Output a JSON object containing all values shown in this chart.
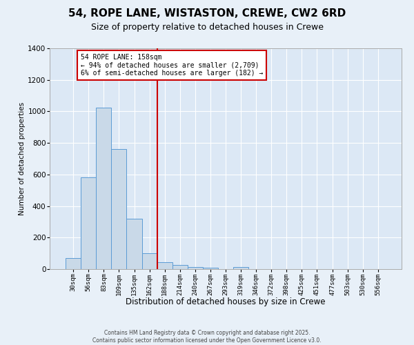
{
  "title": "54, ROPE LANE, WISTASTON, CREWE, CW2 6RD",
  "subtitle": "Size of property relative to detached houses in Crewe",
  "xlabel": "Distribution of detached houses by size in Crewe",
  "ylabel": "Number of detached properties",
  "bar_categories": [
    "30sqm",
    "56sqm",
    "83sqm",
    "109sqm",
    "135sqm",
    "162sqm",
    "188sqm",
    "214sqm",
    "240sqm",
    "267sqm",
    "293sqm",
    "319sqm",
    "346sqm",
    "372sqm",
    "398sqm",
    "425sqm",
    "451sqm",
    "477sqm",
    "503sqm",
    "530sqm",
    "556sqm"
  ],
  "bar_values": [
    70,
    580,
    1025,
    760,
    320,
    100,
    43,
    25,
    12,
    8,
    0,
    12,
    0,
    0,
    0,
    0,
    0,
    0,
    0,
    0,
    0
  ],
  "bar_color": "#c9d9e8",
  "bar_edge_color": "#5b9bd5",
  "ylim": [
    0,
    1400
  ],
  "yticks": [
    0,
    200,
    400,
    600,
    800,
    1000,
    1200,
    1400
  ],
  "vline_color": "#cc0000",
  "annotation_title": "54 ROPE LANE: 158sqm",
  "annotation_line1": "← 94% of detached houses are smaller (2,709)",
  "annotation_line2": "6% of semi-detached houses are larger (182) →",
  "annotation_box_color": "#cc0000",
  "background_color": "#e8f0f8",
  "plot_bg_color": "#dce8f5",
  "grid_color": "#ffffff",
  "footer_line1": "Contains HM Land Registry data © Crown copyright and database right 2025.",
  "footer_line2": "Contains public sector information licensed under the Open Government Licence v3.0.",
  "title_fontsize": 11,
  "subtitle_fontsize": 9,
  "tick_fontsize": 6.5
}
